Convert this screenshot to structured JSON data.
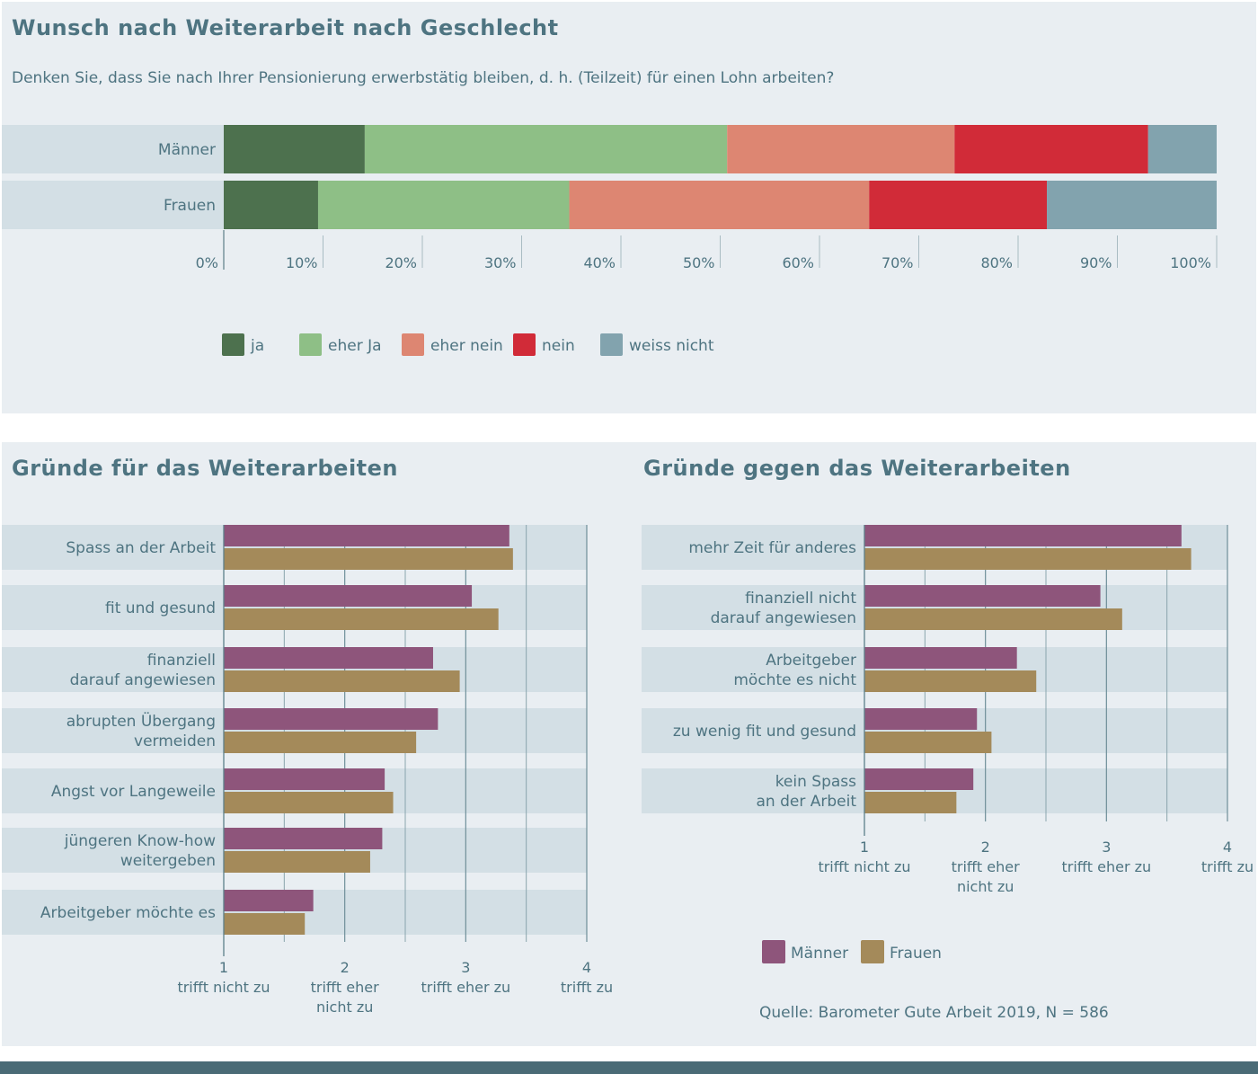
{
  "header": {
    "title": "Wunsch nach Weiterarbeit nach Geschlecht",
    "question": "Denken Sie, dass Sie nach Ihrer Pensionierung erwerbstätig bleiben, d. h. (Teilzeit) für einen Lohn arbeiten?"
  },
  "colors": {
    "ja": "#4d714e",
    "eher_ja": "#8ebf86",
    "eher_nein": "#dd8672",
    "nein": "#d12b38",
    "weiss_nicht": "#82a3ae",
    "maenner": "#8e557b",
    "frauen": "#a48a5a",
    "row_band": "#d3dfe5"
  },
  "chart_data": [
    {
      "type": "bar",
      "orientation": "horizontal",
      "stacked": true,
      "title": "Wunsch nach Weiterarbeit nach Geschlecht",
      "categories": [
        "Männer",
        "Frauen"
      ],
      "series": [
        {
          "name": "ja",
          "values": [
            14.2,
            9.5
          ]
        },
        {
          "name": "eher Ja",
          "values": [
            36.5,
            25.3
          ]
        },
        {
          "name": "eher nein",
          "values": [
            22.9,
            30.2
          ]
        },
        {
          "name": "nein",
          "values": [
            19.5,
            17.9
          ]
        },
        {
          "name": "weiss nicht",
          "values": [
            6.9,
            17.1
          ]
        }
      ],
      "xlim": [
        0,
        100
      ],
      "xticks": [
        "0%",
        "10%",
        "20%",
        "30%",
        "40%",
        "50%",
        "60%",
        "70%",
        "80%",
        "90%",
        "100%"
      ],
      "legend": "bottom-left"
    },
    {
      "type": "bar",
      "orientation": "horizontal",
      "title": "Gründe für das Weiterarbeiten",
      "categories": [
        [
          "Spass an der Arbeit"
        ],
        [
          "fit und gesund"
        ],
        [
          "finanziell",
          "darauf angewiesen"
        ],
        [
          "abrupten Übergang",
          "vermeiden"
        ],
        [
          "Angst vor Langeweile"
        ],
        [
          "jüngeren Know-how",
          "weitergeben"
        ],
        [
          "Arbeitgeber möchte es"
        ]
      ],
      "series": [
        {
          "name": "Männer",
          "values": [
            3.36,
            3.05,
            2.73,
            2.77,
            2.33,
            2.31,
            1.74
          ]
        },
        {
          "name": "Frauen",
          "values": [
            3.39,
            3.27,
            2.95,
            2.59,
            2.4,
            2.21,
            1.67
          ]
        }
      ],
      "xlim": [
        1,
        4
      ],
      "xticks": [
        {
          "value": "1",
          "label": [
            "trifft nicht zu"
          ]
        },
        {
          "value": "2",
          "label": [
            "trifft eher",
            "nicht zu"
          ]
        },
        {
          "value": "3",
          "label": [
            "trifft eher zu"
          ]
        },
        {
          "value": "4",
          "label": [
            "trifft zu"
          ]
        }
      ]
    },
    {
      "type": "bar",
      "orientation": "horizontal",
      "title": "Gründe gegen das Weiterarbeiten",
      "categories": [
        [
          "mehr Zeit für anderes"
        ],
        [
          "finanziell nicht",
          "darauf angewiesen"
        ],
        [
          "Arbeitgeber",
          "möchte es nicht"
        ],
        [
          "zu wenig fit und gesund"
        ],
        [
          "kein Spass",
          "an der Arbeit"
        ]
      ],
      "series": [
        {
          "name": "Männer",
          "values": [
            3.62,
            2.95,
            2.26,
            1.93,
            1.9
          ]
        },
        {
          "name": "Frauen",
          "values": [
            3.7,
            3.13,
            2.42,
            2.05,
            1.76
          ]
        }
      ],
      "xlim": [
        1,
        4
      ],
      "xticks": [
        {
          "value": "1",
          "label": [
            "trifft nicht zu"
          ]
        },
        {
          "value": "2",
          "label": [
            "trifft eher",
            "nicht zu"
          ]
        },
        {
          "value": "3",
          "label": [
            "trifft eher zu"
          ]
        },
        {
          "value": "4",
          "label": [
            "trifft zu"
          ]
        }
      ],
      "legend": "bottom"
    }
  ],
  "source": "Quelle: Barometer Gute Arbeit 2019, N = 586"
}
